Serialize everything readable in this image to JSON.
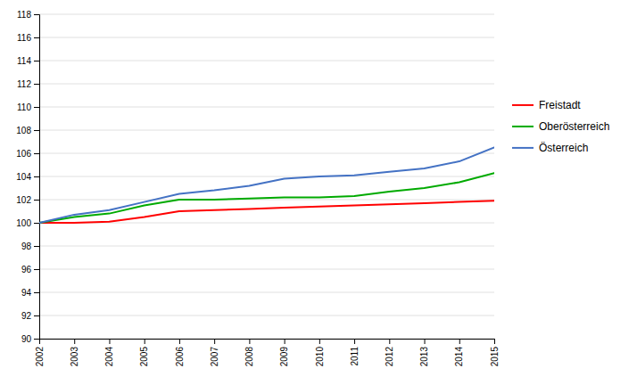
{
  "chart_data": {
    "type": "line",
    "x": [
      2002,
      2003,
      2004,
      2005,
      2006,
      2007,
      2008,
      2009,
      2010,
      2011,
      2012,
      2013,
      2014,
      2015
    ],
    "xlim": [
      2002,
      2015
    ],
    "xticks": [
      2002,
      2003,
      2004,
      2005,
      2006,
      2007,
      2008,
      2009,
      2010,
      2011,
      2012,
      2013,
      2014,
      2015
    ],
    "ylim": [
      90,
      118
    ],
    "yticks": [
      90,
      92,
      94,
      96,
      98,
      100,
      102,
      104,
      106,
      108,
      110,
      112,
      114,
      116,
      118
    ],
    "grid": true,
    "legend": "right",
    "series": [
      {
        "name": "Freistadt",
        "color": "#FF0000",
        "values": [
          100.0,
          100.0,
          100.1,
          100.5,
          101.0,
          101.1,
          101.2,
          101.3,
          101.4,
          101.5,
          101.6,
          101.7,
          101.8,
          101.9
        ]
      },
      {
        "name": "Oberösterreich",
        "color": "#00AA00",
        "values": [
          100.0,
          100.5,
          100.8,
          101.5,
          102.0,
          102.0,
          102.1,
          102.2,
          102.2,
          102.3,
          102.7,
          103.0,
          103.5,
          104.3
        ]
      },
      {
        "name": "Österreich",
        "color": "#4472C4",
        "values": [
          100.0,
          100.7,
          101.1,
          101.8,
          102.5,
          102.8,
          103.2,
          103.8,
          104.0,
          104.1,
          104.4,
          104.7,
          105.3,
          106.5
        ]
      }
    ]
  }
}
